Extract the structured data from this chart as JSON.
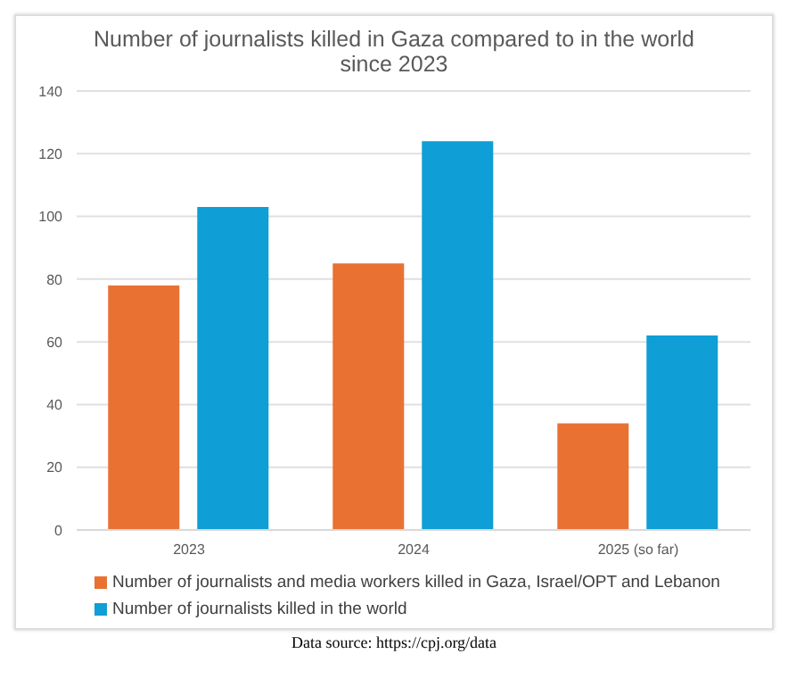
{
  "chart_data": {
    "type": "bar",
    "title": "Number of journalists killed in Gaza compared to in the world since 2023",
    "categories": [
      "2023",
      "2024",
      "2025 (so far)"
    ],
    "series": [
      {
        "name": "Number of journalists and media workers killed in Gaza, Israel/OPT and Lebanon",
        "color": "#e97132",
        "values": [
          78,
          85,
          34
        ]
      },
      {
        "name": "Number of journalists killed in the world",
        "color": "#0f9ed5",
        "values": [
          103,
          124,
          62
        ]
      }
    ],
    "ylim": [
      0,
      140
    ],
    "yticks": [
      0,
      20,
      40,
      60,
      80,
      100,
      120,
      140
    ],
    "grid": "y",
    "legend": "bottom",
    "annotations": [
      "Data source: https://cpj.org/data"
    ]
  }
}
